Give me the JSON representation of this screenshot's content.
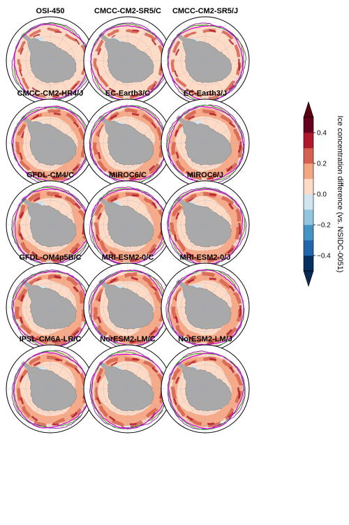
{
  "chart_data": {
    "type": "heatmap",
    "description_of_layout": "grid",
    "panels": [
      "OSI-450",
      "CMCC-CM2-SR5/C",
      "CMCC-CM2-SR5/J",
      "CMCC-CM2-HR4/J",
      "EC-Earth3/C",
      "EC-Earth3/J",
      "GFDL-CM4/C",
      "MIROC6/C",
      "MIROC6/J",
      "GFDL-OM4p5B/C",
      "MRI-ESM2-0/C",
      "MRI-ESM2-0/J",
      "IPSL-CM6A-LR/C",
      "NorESM2-LM/C",
      "NorESM2-LM/J"
    ],
    "colorbar": {
      "label": "Ice concentration difference (vs. NSIDC-0051)",
      "range": [
        -0.5,
        0.5
      ],
      "boundaries": [
        -0.5,
        -0.4,
        -0.3,
        -0.2,
        -0.1,
        0.0,
        0.1,
        0.2,
        0.3,
        0.4,
        0.5
      ],
      "extend": "both",
      "ticks": [
        -0.4,
        -0.2,
        0.0,
        0.2,
        0.4
      ],
      "tick_labels": [
        "−0.4",
        "−0.2",
        "0.0",
        "0.2",
        "0.4"
      ],
      "colors": [
        "#053061",
        "#2166ac",
        "#4393c3",
        "#92c5de",
        "#d1e5f0",
        "#fddbc7",
        "#f4a582",
        "#d6604d",
        "#b2182b",
        "#67001f"
      ],
      "under_color": "#0a2a56",
      "over_color": "#5a0013"
    },
    "panel_intensity": [
      0.35,
      0.45,
      0.45,
      0.55,
      0.6,
      0.6,
      0.7,
      0.6,
      0.65,
      0.75,
      0.65,
      0.65,
      0.55,
      0.6,
      0.6
    ],
    "land_color": "#a9a9a9",
    "ice_edge_colors": [
      "#7b00a0",
      "#00a000",
      "#d000d0"
    ]
  }
}
